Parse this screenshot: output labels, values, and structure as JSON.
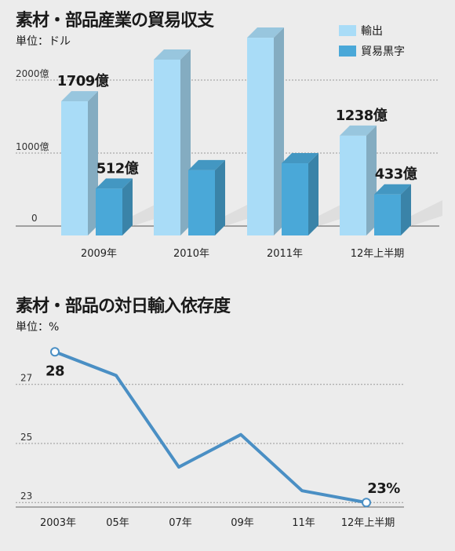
{
  "chart_data": [
    {
      "type": "bar",
      "title": "素材・部品産業の貿易収支",
      "unit": "単位：ドル",
      "categories": [
        "2009年",
        "2010年",
        "2011年",
        "12年上半期"
      ],
      "series": [
        {
          "name": "輸出",
          "values": [
            1709,
            2280,
            2580,
            1238
          ],
          "color": "#a9dcf7"
        },
        {
          "name": "貿易黒字",
          "values": [
            512,
            765,
            860,
            433
          ],
          "color": "#4aa8d8"
        }
      ],
      "y_ticks": [
        {
          "value": 0,
          "label": "0"
        },
        {
          "value": 1000,
          "label": "1000億"
        },
        {
          "value": 2000,
          "label": "2000億"
        }
      ],
      "data_labels": [
        {
          "series": 0,
          "index": 0,
          "text": "1709億"
        },
        {
          "series": 1,
          "index": 0,
          "text": "512億"
        },
        {
          "series": 0,
          "index": 3,
          "text": "1238億"
        },
        {
          "series": 1,
          "index": 3,
          "text": "433億"
        }
      ],
      "grid": true
    },
    {
      "type": "line",
      "title": "素材・部品の対日輸入依存度",
      "unit": "単位：%",
      "x": [
        "2003年",
        "05年",
        "07年",
        "09年",
        "11年",
        "12年上半期"
      ],
      "values": [
        28.1,
        27.3,
        24.2,
        25.3,
        23.4,
        23.0
      ],
      "ylim": [
        22.9,
        28.4
      ],
      "y_ticks": [
        23,
        25,
        27
      ],
      "line_color": "#4a8fc4",
      "data_labels": [
        {
          "index": 0,
          "text": "28"
        },
        {
          "index": 5,
          "text": "23%"
        }
      ],
      "grid": true
    }
  ]
}
